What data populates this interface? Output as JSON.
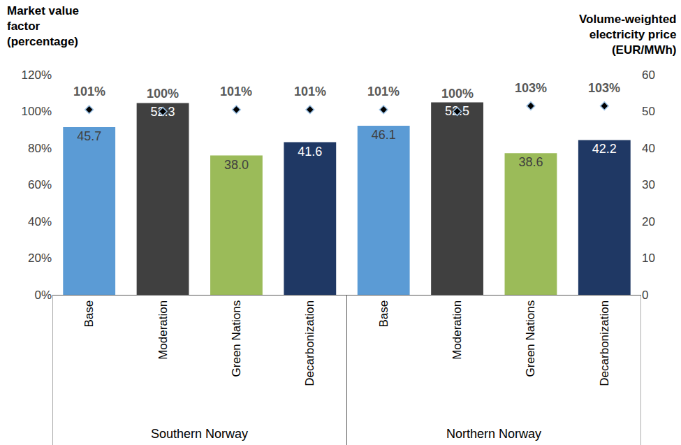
{
  "chart_data": {
    "type": "bar",
    "y_label": "Market value\nfactor\n(percentage)",
    "y2_label": "Volume-weighted\nelectricity price\n(EUR/MWh)",
    "categories": [
      "Base",
      "Moderation",
      "Green Nations",
      "Decarbonization",
      "Base",
      "Moderation",
      "Green Nations",
      "Decarbonization"
    ],
    "groups": [
      "Southern Norway",
      "Southern Norway",
      "Southern Norway",
      "Southern Norway",
      "Northern Norway",
      "Northern Norway",
      "Northern Norway",
      "Northern Norway"
    ],
    "ylim": [
      0,
      120
    ],
    "yticks": [
      {
        "value": 0,
        "label": "0%"
      },
      {
        "value": 20,
        "label": "20%"
      },
      {
        "value": 40,
        "label": "40%"
      },
      {
        "value": 60,
        "label": "60%"
      },
      {
        "value": 80,
        "label": "80%"
      },
      {
        "value": 100,
        "label": "100%"
      },
      {
        "value": 120,
        "label": "120%"
      }
    ],
    "y2lim": [
      0,
      60
    ],
    "y2ticks": [
      0,
      10,
      20,
      30,
      40,
      50,
      60
    ],
    "grid": false,
    "data_labels": true,
    "series": [
      {
        "type": "bar",
        "axis": "y2",
        "colors": [
          "#5b9bd5",
          "#404040",
          "#9bbb59",
          "#1f3864",
          "#5b9bd5",
          "#404040",
          "#9bbb59",
          "#1f3864"
        ],
        "values": [
          45.7,
          52.3,
          38.0,
          41.6,
          46.1,
          52.5,
          38.6,
          42.2
        ],
        "value_labels": [
          "45.7",
          "52.3",
          "38.0",
          "41.6",
          "46.1",
          "52.5",
          "38.6",
          "42.2"
        ]
      },
      {
        "type": "scatter",
        "marker": "diamond",
        "color": "#000000",
        "values": [
          101,
          100,
          101,
          101,
          101,
          100,
          103,
          103
        ],
        "value_labels": [
          "101%",
          "100%",
          "101%",
          "101%",
          "101%",
          "100%",
          "103%",
          "103%"
        ]
      }
    ]
  }
}
